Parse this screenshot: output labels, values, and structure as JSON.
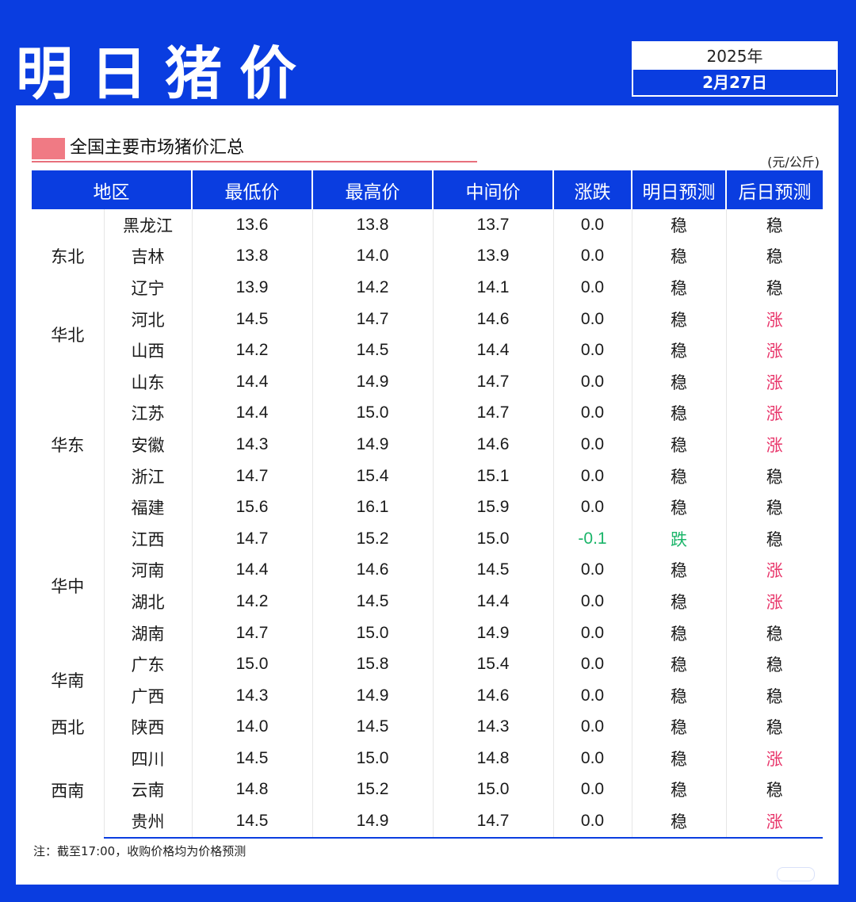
{
  "header": {
    "title": "明日猪价",
    "year": "2025年",
    "date": "2月27日"
  },
  "section": {
    "title": "全国主要市场猪价汇总",
    "unit": "(元/公斤)"
  },
  "colors": {
    "brand_blue": "#0a3de0",
    "up": "#e8356a",
    "down": "#1bb56a",
    "accent_pink": "#f07a84"
  },
  "table": {
    "headers": [
      "地区",
      "最低价",
      "最高价",
      "中间价",
      "涨跌",
      "明日预测",
      "后日预测"
    ],
    "groups": [
      {
        "region": "东北",
        "rows": [
          {
            "province": "黑龙江",
            "low": "13.6",
            "high": "13.8",
            "mid": "13.7",
            "change": "0.0",
            "tomorrow": "稳",
            "after": "稳"
          },
          {
            "province": "吉林",
            "low": "13.8",
            "high": "14.0",
            "mid": "13.9",
            "change": "0.0",
            "tomorrow": "稳",
            "after": "稳"
          },
          {
            "province": "辽宁",
            "low": "13.9",
            "high": "14.2",
            "mid": "14.1",
            "change": "0.0",
            "tomorrow": "稳",
            "after": "稳"
          }
        ]
      },
      {
        "region": "华北",
        "rows": [
          {
            "province": "河北",
            "low": "14.5",
            "high": "14.7",
            "mid": "14.6",
            "change": "0.0",
            "tomorrow": "稳",
            "after": "涨"
          },
          {
            "province": "山西",
            "low": "14.2",
            "high": "14.5",
            "mid": "14.4",
            "change": "0.0",
            "tomorrow": "稳",
            "after": "涨"
          }
        ]
      },
      {
        "region": "华东",
        "rows": [
          {
            "province": "山东",
            "low": "14.4",
            "high": "14.9",
            "mid": "14.7",
            "change": "0.0",
            "tomorrow": "稳",
            "after": "涨"
          },
          {
            "province": "江苏",
            "low": "14.4",
            "high": "15.0",
            "mid": "14.7",
            "change": "0.0",
            "tomorrow": "稳",
            "after": "涨"
          },
          {
            "province": "安徽",
            "low": "14.3",
            "high": "14.9",
            "mid": "14.6",
            "change": "0.0",
            "tomorrow": "稳",
            "after": "涨"
          },
          {
            "province": "浙江",
            "low": "14.7",
            "high": "15.4",
            "mid": "15.1",
            "change": "0.0",
            "tomorrow": "稳",
            "after": "稳"
          },
          {
            "province": "福建",
            "low": "15.6",
            "high": "16.1",
            "mid": "15.9",
            "change": "0.0",
            "tomorrow": "稳",
            "after": "稳"
          }
        ]
      },
      {
        "region": "华中",
        "rows": [
          {
            "province": "江西",
            "low": "14.7",
            "high": "15.2",
            "mid": "15.0",
            "change": "-0.1",
            "tomorrow": "跌",
            "after": "稳"
          },
          {
            "province": "河南",
            "low": "14.4",
            "high": "14.6",
            "mid": "14.5",
            "change": "0.0",
            "tomorrow": "稳",
            "after": "涨"
          },
          {
            "province": "湖北",
            "low": "14.2",
            "high": "14.5",
            "mid": "14.4",
            "change": "0.0",
            "tomorrow": "稳",
            "after": "涨"
          },
          {
            "province": "湖南",
            "low": "14.7",
            "high": "15.0",
            "mid": "14.9",
            "change": "0.0",
            "tomorrow": "稳",
            "after": "稳"
          }
        ]
      },
      {
        "region": "华南",
        "rows": [
          {
            "province": "广东",
            "low": "15.0",
            "high": "15.8",
            "mid": "15.4",
            "change": "0.0",
            "tomorrow": "稳",
            "after": "稳"
          },
          {
            "province": "广西",
            "low": "14.3",
            "high": "14.9",
            "mid": "14.6",
            "change": "0.0",
            "tomorrow": "稳",
            "after": "稳"
          }
        ]
      },
      {
        "region": "西北",
        "rows": [
          {
            "province": "陕西",
            "low": "14.0",
            "high": "14.5",
            "mid": "14.3",
            "change": "0.0",
            "tomorrow": "稳",
            "after": "稳"
          }
        ]
      },
      {
        "region": "西南",
        "rows": [
          {
            "province": "四川",
            "low": "14.5",
            "high": "15.0",
            "mid": "14.8",
            "change": "0.0",
            "tomorrow": "稳",
            "after": "涨"
          },
          {
            "province": "云南",
            "low": "14.8",
            "high": "15.2",
            "mid": "15.0",
            "change": "0.0",
            "tomorrow": "稳",
            "after": "稳"
          },
          {
            "province": "贵州",
            "low": "14.5",
            "high": "14.9",
            "mid": "14.7",
            "change": "0.0",
            "tomorrow": "稳",
            "after": "涨"
          }
        ]
      }
    ]
  },
  "footnote": "注：截至17:00，收购价格均为价格预测"
}
